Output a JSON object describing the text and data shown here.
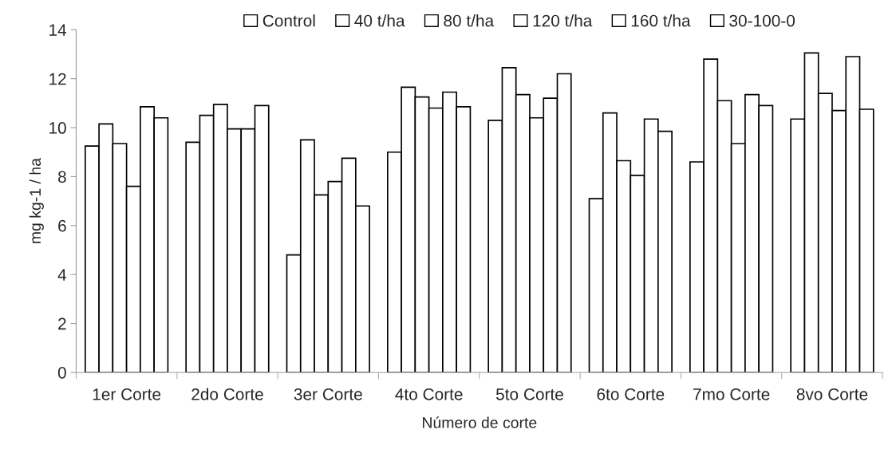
{
  "chart_data": {
    "type": "bar",
    "xlabel": "Número de corte",
    "ylabel": "mg kg-1 / ha",
    "categories": [
      "1er Corte",
      "2do Corte",
      "3er Corte",
      "4to Corte",
      "5to Corte",
      "6to Corte",
      "7mo Corte",
      "8vo Corte"
    ],
    "series": [
      {
        "name": "Control",
        "color": "#ffffff",
        "values": [
          9.25,
          9.4,
          4.8,
          9.0,
          10.3,
          7.1,
          8.6,
          10.35
        ]
      },
      {
        "name": "40 t/ha",
        "color": "#ffffff",
        "values": [
          10.15,
          10.5,
          9.5,
          11.65,
          12.45,
          10.6,
          12.8,
          13.05
        ]
      },
      {
        "name": "80 t/ha",
        "color": "#ffffff",
        "values": [
          9.35,
          10.95,
          7.25,
          11.25,
          11.35,
          8.65,
          11.1,
          11.4
        ]
      },
      {
        "name": "120 t/ha",
        "color": "#ffffff",
        "values": [
          7.6,
          9.95,
          7.8,
          10.8,
          10.4,
          8.05,
          9.35,
          10.7
        ]
      },
      {
        "name": "160 t/ha",
        "color": "#ffffff",
        "values": [
          10.85,
          9.95,
          8.75,
          11.45,
          11.2,
          10.35,
          11.35,
          12.9
        ]
      },
      {
        "name": "30-100-0",
        "color": "#ffffff",
        "values": [
          10.4,
          10.9,
          6.8,
          10.85,
          12.2,
          9.85,
          10.9,
          10.75
        ]
      }
    ],
    "ylim": [
      0,
      14
    ],
    "yticks": [
      0,
      2,
      4,
      6,
      8,
      10,
      12,
      14
    ],
    "grid": false,
    "legend": "top"
  }
}
